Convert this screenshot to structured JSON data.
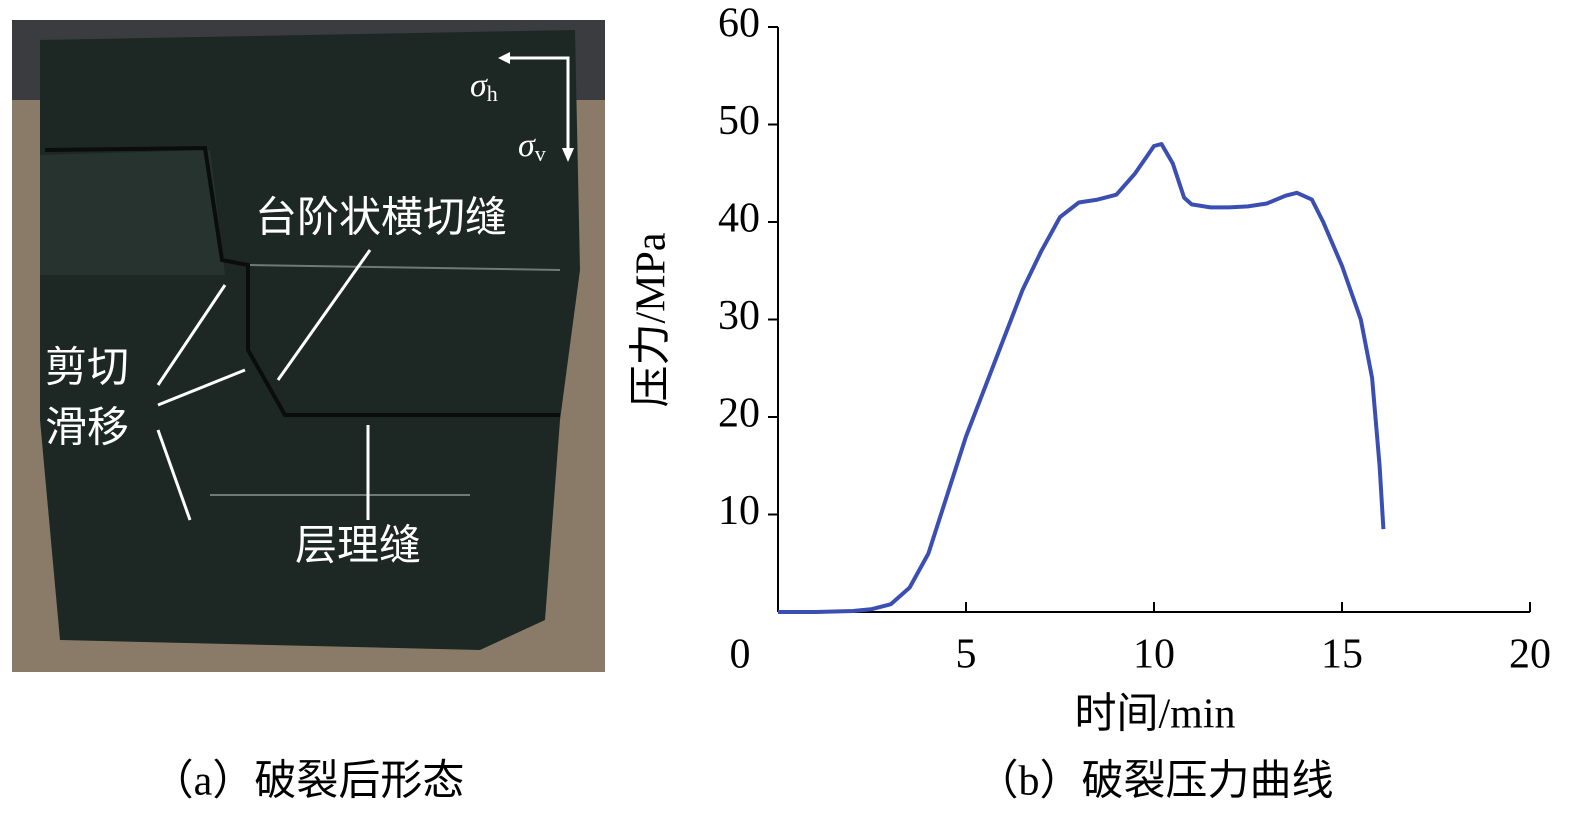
{
  "photo": {
    "caption": "（a）破裂后形态",
    "labels": [
      "台阶状横切缝",
      "剪切",
      "滑移",
      "层理缝"
    ],
    "stress": [
      {
        "symbol": "σ",
        "sub": "h"
      },
      {
        "symbol": "σ",
        "sub": "v"
      }
    ]
  },
  "chart_data": {
    "type": "line",
    "caption": "（b）破裂压力曲线",
    "xlabel": "时间/min",
    "ylabel": "压力/MPa",
    "x": [
      0,
      1,
      2,
      2.5,
      3,
      3.5,
      4,
      4.5,
      5,
      5.5,
      6,
      6.5,
      7,
      7.5,
      8,
      8.5,
      9,
      9.5,
      10,
      10.2,
      10.5,
      10.8,
      11,
      11.5,
      12,
      12.5,
      13,
      13.5,
      13.8,
      14.2,
      14.5,
      15,
      15.5,
      15.8,
      16,
      16.1
    ],
    "values": [
      0,
      0,
      0.1,
      0.3,
      0.8,
      2.5,
      6,
      12,
      18,
      23,
      28,
      33,
      37,
      40.5,
      42,
      42.3,
      42.8,
      45,
      47.8,
      48,
      46,
      42.5,
      41.8,
      41.5,
      41.5,
      41.6,
      41.9,
      42.7,
      43,
      42.3,
      40,
      35.5,
      30,
      24,
      15,
      8.5
    ],
    "color": "#3b4fb3",
    "xlim": [
      0,
      20
    ],
    "xticks": [
      0,
      5,
      10,
      15,
      20
    ],
    "ylim": [
      0,
      60
    ],
    "yticks": [
      10,
      20,
      30,
      40,
      50,
      60
    ]
  }
}
